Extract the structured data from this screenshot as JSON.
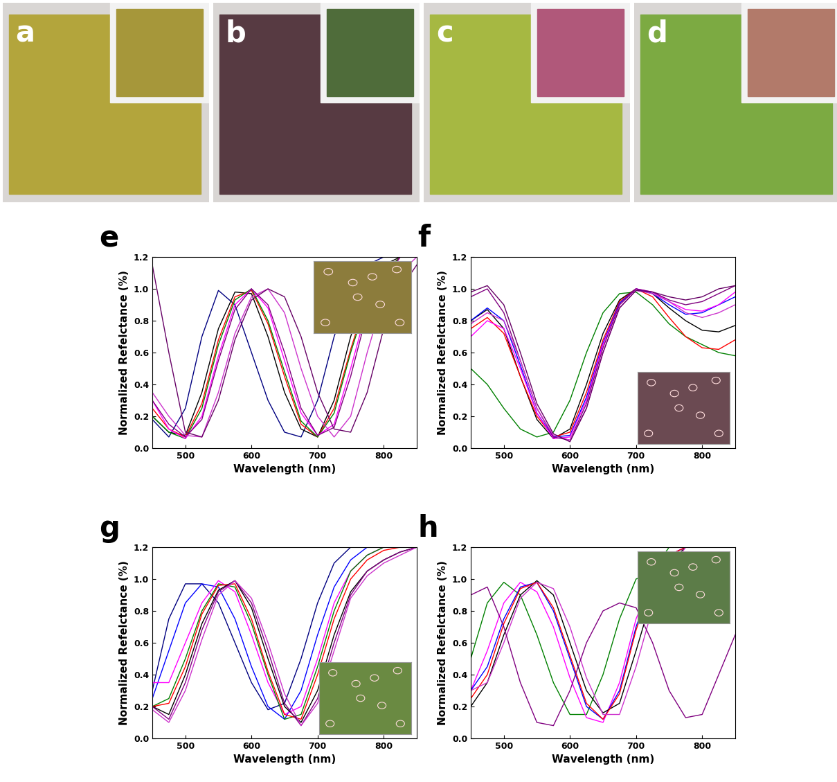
{
  "photos": [
    {
      "label": "a",
      "color": "#b3a53c",
      "inset_color": "#a6973a"
    },
    {
      "label": "b",
      "color": "#573a42",
      "inset_color": "#4f6c3a"
    },
    {
      "label": "c",
      "color": "#a6b842",
      "inset_color": "#b0587a"
    },
    {
      "label": "d",
      "color": "#7caa42",
      "inset_color": "#b27a6a"
    }
  ],
  "chart_data": [
    {
      "type": "line",
      "title": "e",
      "x_label": "Wavelength (nm)",
      "y_label": "Normalized Refelctance (%)",
      "x": [
        450,
        475,
        500,
        525,
        550,
        575,
        600,
        625,
        650,
        675,
        700,
        725,
        750,
        775,
        800,
        825,
        850
      ],
      "xlim": [
        450,
        850
      ],
      "xticks": [
        500,
        600,
        700,
        800
      ],
      "ylim": [
        0.0,
        1.2
      ],
      "yticks": [
        0.0,
        0.2,
        0.4,
        0.6,
        0.8,
        1.0,
        1.2
      ],
      "series": [
        {
          "color": "#000080",
          "values": [
            0.18,
            0.07,
            0.25,
            0.7,
            0.99,
            0.9,
            0.6,
            0.3,
            0.1,
            0.07,
            0.3,
            0.7,
            1.0,
            1.15,
            1.2,
            1.2,
            1.2
          ]
        },
        {
          "color": "#000000",
          "values": [
            0.2,
            0.1,
            0.08,
            0.35,
            0.75,
            0.98,
            0.97,
            0.7,
            0.35,
            0.12,
            0.07,
            0.3,
            0.7,
            1.0,
            1.15,
            1.2,
            1.2
          ]
        },
        {
          "color": "#ff0000",
          "values": [
            0.25,
            0.12,
            0.07,
            0.28,
            0.68,
            0.95,
            0.99,
            0.78,
            0.45,
            0.15,
            0.07,
            0.25,
            0.62,
            0.95,
            1.1,
            1.2,
            1.2
          ]
        },
        {
          "color": "#008000",
          "values": [
            0.2,
            0.1,
            0.06,
            0.25,
            0.65,
            0.93,
            1.0,
            0.8,
            0.48,
            0.17,
            0.07,
            0.22,
            0.6,
            0.93,
            1.1,
            1.2,
            1.2
          ]
        },
        {
          "color": "#ff00ff",
          "values": [
            0.3,
            0.12,
            0.06,
            0.2,
            0.58,
            0.9,
            1.0,
            0.88,
            0.55,
            0.22,
            0.08,
            0.15,
            0.5,
            0.88,
            1.05,
            1.2,
            1.2
          ]
        },
        {
          "color": "#800080",
          "values": [
            0.3,
            0.15,
            0.07,
            0.18,
            0.55,
            0.87,
            1.0,
            0.9,
            0.6,
            0.25,
            0.08,
            0.13,
            0.45,
            0.85,
            1.05,
            1.2,
            1.2
          ]
        },
        {
          "color": "#cc33cc",
          "values": [
            0.35,
            0.2,
            0.08,
            0.07,
            0.35,
            0.72,
            0.95,
            1.0,
            0.85,
            0.5,
            0.2,
            0.07,
            0.2,
            0.6,
            0.95,
            1.1,
            1.2
          ]
        },
        {
          "color": "#660066",
          "values": [
            1.15,
            0.6,
            0.1,
            0.07,
            0.3,
            0.68,
            0.93,
            1.0,
            0.95,
            0.7,
            0.35,
            0.12,
            0.1,
            0.35,
            0.75,
            1.0,
            1.15
          ]
        }
      ]
    },
    {
      "type": "line",
      "title": "f",
      "x_label": "Wavelength (nm)",
      "y_label": "Normalized Refelctance (%)",
      "x": [
        450,
        475,
        500,
        525,
        550,
        575,
        600,
        625,
        650,
        675,
        700,
        725,
        750,
        775,
        800,
        825,
        850
      ],
      "xlim": [
        450,
        850
      ],
      "xticks": [
        500,
        600,
        700,
        800
      ],
      "ylim": [
        0.0,
        1.2
      ],
      "yticks": [
        0.0,
        0.2,
        0.4,
        0.6,
        0.8,
        1.0,
        1.2
      ],
      "series": [
        {
          "color": "#008000",
          "values": [
            0.5,
            0.4,
            0.25,
            0.12,
            0.07,
            0.1,
            0.3,
            0.6,
            0.85,
            0.97,
            0.98,
            0.9,
            0.78,
            0.7,
            0.65,
            0.6,
            0.58
          ]
        },
        {
          "color": "#000000",
          "values": [
            0.8,
            0.87,
            0.75,
            0.45,
            0.18,
            0.06,
            0.12,
            0.4,
            0.72,
            0.93,
            1.0,
            0.97,
            0.88,
            0.8,
            0.74,
            0.73,
            0.77
          ]
        },
        {
          "color": "#ff0000",
          "values": [
            0.75,
            0.82,
            0.72,
            0.45,
            0.2,
            0.07,
            0.1,
            0.35,
            0.68,
            0.92,
            1.0,
            0.95,
            0.82,
            0.7,
            0.63,
            0.62,
            0.68
          ]
        },
        {
          "color": "#0000ff",
          "values": [
            0.8,
            0.88,
            0.8,
            0.52,
            0.22,
            0.07,
            0.08,
            0.32,
            0.66,
            0.91,
            1.0,
            0.97,
            0.9,
            0.84,
            0.85,
            0.9,
            0.95
          ]
        },
        {
          "color": "#ff00ff",
          "values": [
            0.7,
            0.8,
            0.75,
            0.5,
            0.22,
            0.06,
            0.07,
            0.3,
            0.65,
            0.9,
            1.0,
            0.98,
            0.92,
            0.87,
            0.86,
            0.9,
            0.98
          ]
        },
        {
          "color": "#800080",
          "values": [
            0.95,
            1.0,
            0.85,
            0.55,
            0.25,
            0.07,
            0.05,
            0.28,
            0.63,
            0.9,
            1.0,
            0.98,
            0.93,
            0.9,
            0.92,
            0.97,
            1.02
          ]
        },
        {
          "color": "#cc33cc",
          "values": [
            0.78,
            0.85,
            0.8,
            0.55,
            0.25,
            0.08,
            0.05,
            0.25,
            0.6,
            0.88,
            0.99,
            0.97,
            0.92,
            0.85,
            0.82,
            0.85,
            0.9
          ]
        },
        {
          "color": "#660066",
          "values": [
            0.98,
            1.02,
            0.9,
            0.6,
            0.28,
            0.09,
            0.04,
            0.25,
            0.6,
            0.88,
            0.99,
            0.98,
            0.95,
            0.93,
            0.95,
            1.0,
            1.02
          ]
        }
      ]
    },
    {
      "type": "line",
      "title": "g",
      "x_label": "Wavelength (nm)",
      "y_label": "Normalized Refelctance (%)",
      "x": [
        450,
        475,
        500,
        525,
        550,
        575,
        600,
        625,
        650,
        675,
        700,
        725,
        750,
        775,
        800,
        825,
        850
      ],
      "xlim": [
        450,
        850
      ],
      "xticks": [
        500,
        600,
        700,
        800
      ],
      "ylim": [
        0.0,
        1.2
      ],
      "yticks": [
        0.0,
        0.2,
        0.4,
        0.6,
        0.8,
        1.0,
        1.2
      ],
      "series": [
        {
          "color": "#000080",
          "values": [
            0.3,
            0.75,
            0.97,
            0.97,
            0.85,
            0.6,
            0.35,
            0.18,
            0.22,
            0.5,
            0.85,
            1.1,
            1.2,
            1.2,
            1.2,
            1.2,
            1.2
          ]
        },
        {
          "color": "#0000ff",
          "values": [
            0.25,
            0.55,
            0.85,
            0.97,
            0.95,
            0.75,
            0.45,
            0.2,
            0.12,
            0.3,
            0.65,
            0.95,
            1.12,
            1.2,
            1.2,
            1.2,
            1.2
          ]
        },
        {
          "color": "#ff00ff",
          "values": [
            0.35,
            0.35,
            0.6,
            0.85,
            0.99,
            0.92,
            0.65,
            0.35,
            0.15,
            0.2,
            0.5,
            0.85,
            1.05,
            1.15,
            1.2,
            1.2,
            1.2
          ]
        },
        {
          "color": "#008000",
          "values": [
            0.2,
            0.25,
            0.5,
            0.8,
            0.97,
            0.95,
            0.72,
            0.4,
            0.12,
            0.15,
            0.45,
            0.8,
            1.05,
            1.15,
            1.2,
            1.2,
            1.2
          ]
        },
        {
          "color": "#ff0000",
          "values": [
            0.2,
            0.22,
            0.45,
            0.78,
            0.96,
            0.97,
            0.75,
            0.42,
            0.15,
            0.12,
            0.4,
            0.75,
            1.0,
            1.12,
            1.18,
            1.2,
            1.2
          ]
        },
        {
          "color": "#000000",
          "values": [
            0.2,
            0.15,
            0.4,
            0.72,
            0.93,
            0.99,
            0.82,
            0.5,
            0.2,
            0.1,
            0.3,
            0.65,
            0.92,
            1.05,
            1.12,
            1.17,
            1.2
          ]
        },
        {
          "color": "#800080",
          "values": [
            0.2,
            0.12,
            0.35,
            0.68,
            0.92,
            0.99,
            0.85,
            0.55,
            0.22,
            0.08,
            0.25,
            0.6,
            0.9,
            1.05,
            1.12,
            1.17,
            1.2
          ]
        },
        {
          "color": "#cc33cc",
          "values": [
            0.18,
            0.1,
            0.3,
            0.62,
            0.9,
            0.99,
            0.88,
            0.6,
            0.28,
            0.08,
            0.22,
            0.55,
            0.88,
            1.02,
            1.1,
            1.15,
            1.2
          ]
        }
      ]
    },
    {
      "type": "line",
      "title": "h",
      "x_label": "Wavelength (nm)",
      "y_label": "Normalized Refelctance (%)",
      "x": [
        450,
        475,
        500,
        525,
        550,
        575,
        600,
        625,
        650,
        675,
        700,
        725,
        750,
        775,
        800,
        825,
        850
      ],
      "xlim": [
        450,
        850
      ],
      "xticks": [
        500,
        600,
        700,
        800
      ],
      "ylim": [
        0.0,
        1.2
      ],
      "yticks": [
        0.0,
        0.2,
        0.4,
        0.6,
        0.8,
        1.0,
        1.2
      ],
      "series": [
        {
          "color": "#008000",
          "values": [
            0.5,
            0.85,
            0.98,
            0.9,
            0.65,
            0.35,
            0.15,
            0.15,
            0.4,
            0.75,
            1.0,
            1.05,
            1.2,
            1.2,
            1.2,
            1.2,
            1.2
          ]
        },
        {
          "color": "#ff00ff",
          "values": [
            0.3,
            0.55,
            0.85,
            0.98,
            0.92,
            0.7,
            0.38,
            0.13,
            0.1,
            0.35,
            0.75,
            1.0,
            1.15,
            1.2,
            1.2,
            1.2,
            1.2
          ]
        },
        {
          "color": "#0000ff",
          "values": [
            0.3,
            0.45,
            0.75,
            0.95,
            0.98,
            0.8,
            0.5,
            0.2,
            0.12,
            0.3,
            0.7,
            1.0,
            1.15,
            1.2,
            1.2,
            1.2,
            1.2
          ]
        },
        {
          "color": "#000000",
          "values": [
            0.2,
            0.35,
            0.65,
            0.9,
            0.99,
            0.9,
            0.6,
            0.3,
            0.16,
            0.22,
            0.55,
            0.9,
            1.1,
            1.2,
            1.2,
            1.2,
            1.2
          ]
        },
        {
          "color": "#ff0000",
          "values": [
            0.25,
            0.4,
            0.72,
            0.94,
            0.98,
            0.82,
            0.52,
            0.22,
            0.12,
            0.28,
            0.68,
            0.98,
            1.15,
            1.2,
            1.2,
            1.2,
            1.2
          ]
        },
        {
          "color": "#cc33cc",
          "values": [
            0.3,
            0.35,
            0.6,
            0.88,
            0.98,
            0.94,
            0.7,
            0.38,
            0.15,
            0.15,
            0.45,
            0.82,
            1.05,
            1.2,
            1.2,
            1.2,
            1.2
          ]
        },
        {
          "color": "#800080",
          "values": [
            0.9,
            0.95,
            0.7,
            0.35,
            0.1,
            0.08,
            0.3,
            0.6,
            0.8,
            0.85,
            0.82,
            0.6,
            0.3,
            0.13,
            0.15,
            0.4,
            0.65
          ]
        }
      ]
    }
  ]
}
